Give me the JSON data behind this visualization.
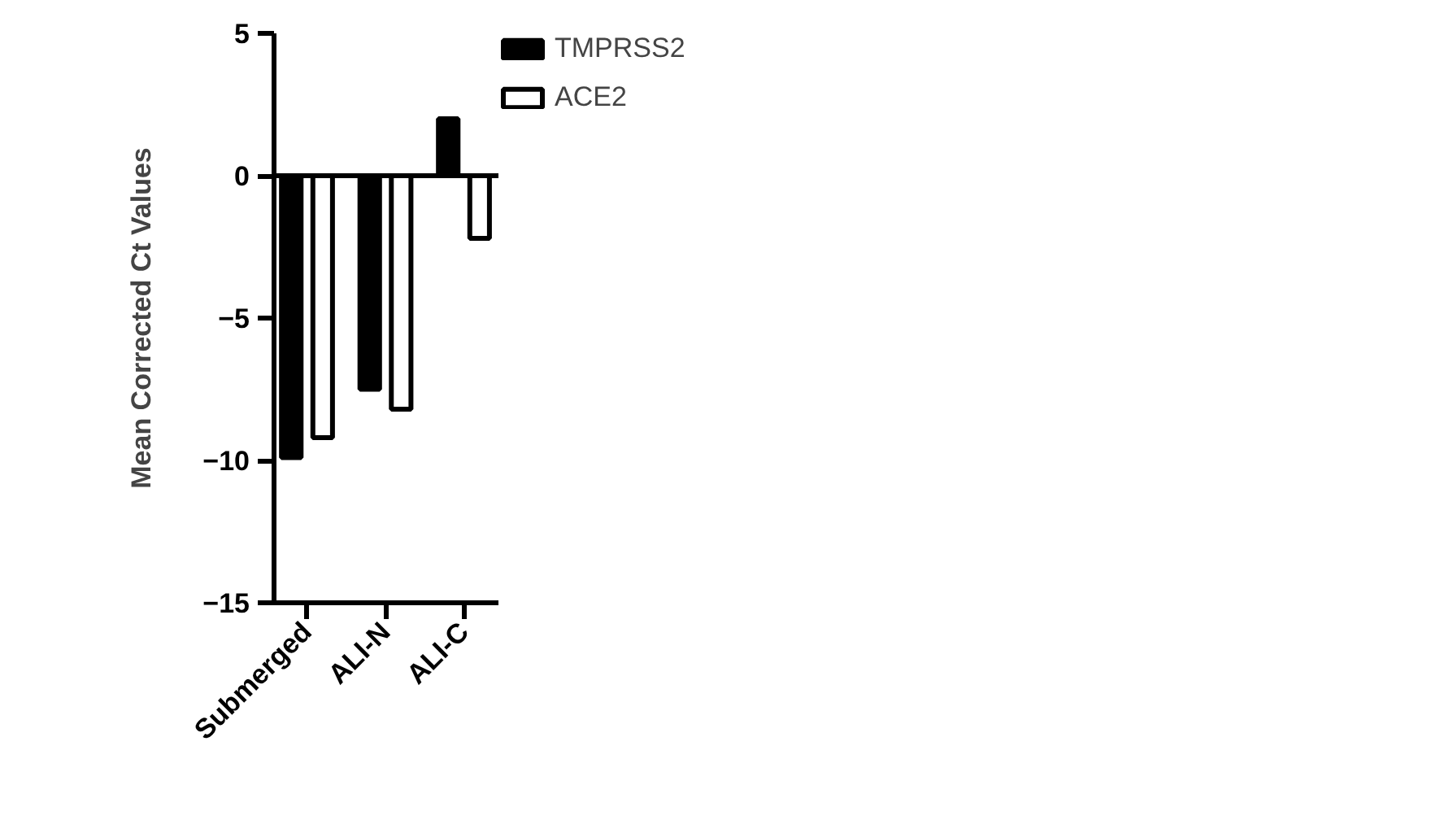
{
  "chart_data": {
    "type": "bar",
    "ylabel": "Mean Corrected Ct Values",
    "categories": [
      "Submerged",
      "ALI-N",
      "ALI-C"
    ],
    "series": [
      {
        "name": "TMPRSS2",
        "color": "#000000",
        "values": [
          -9.9,
          -7.5,
          2.0
        ]
      },
      {
        "name": "ACE2",
        "color": "#ffffff",
        "values": [
          -9.2,
          -8.2,
          -2.2
        ]
      }
    ],
    "ylim": [
      -15,
      5
    ],
    "yticks": [
      -15,
      -10,
      -5,
      0,
      5
    ],
    "ref_lines": [
      {
        "axis": "y",
        "value": 0
      }
    ],
    "grid": false,
    "legend": "top right"
  }
}
